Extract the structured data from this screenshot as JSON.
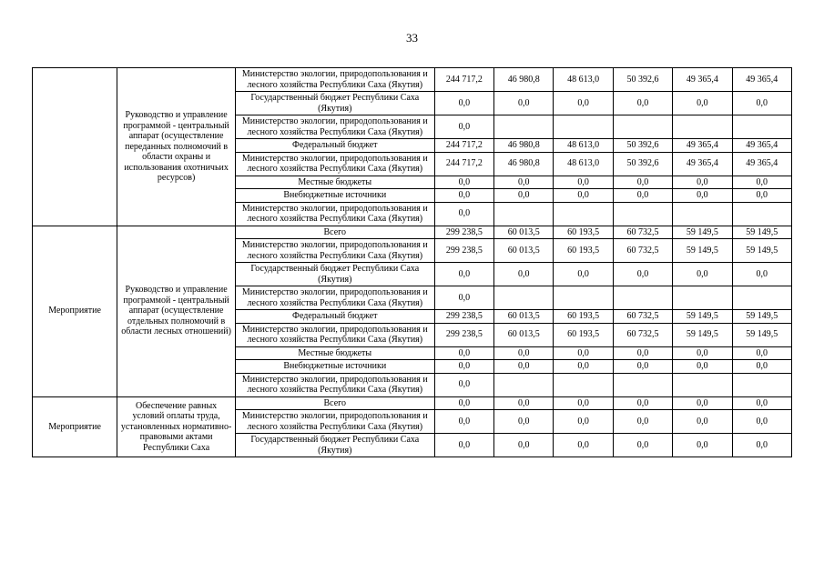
{
  "page_number": "33",
  "table": {
    "blocks": [
      {
        "category": "",
        "description": "Руководство и управление программой - центральный аппарат (осуществление переданных полномочий в области охраны и использования охотничьих ресурсов)",
        "rows": [
          {
            "source": "Министерство экологии, природопользования и лесного хозяйства Республики Саха (Якутия)",
            "values": [
              "244 717,2",
              "46 980,8",
              "48 613,0",
              "50 392,6",
              "49 365,4",
              "49 365,4"
            ]
          },
          {
            "source": "Государственный бюджет Республики Саха (Якутия)",
            "values": [
              "0,0",
              "0,0",
              "0,0",
              "0,0",
              "0,0",
              "0,0"
            ]
          },
          {
            "source": "Министерство экологии, природопользования и лесного хозяйства Республики Саха (Якутия)",
            "values": [
              "0,0",
              "",
              "",
              "",
              "",
              ""
            ]
          },
          {
            "source": "Федеральный бюджет",
            "values": [
              "244 717,2",
              "46 980,8",
              "48 613,0",
              "50 392,6",
              "49 365,4",
              "49 365,4"
            ]
          },
          {
            "source": "Министерство экологии, природопользования и лесного хозяйства Республики Саха (Якутия)",
            "values": [
              "244 717,2",
              "46 980,8",
              "48 613,0",
              "50 392,6",
              "49 365,4",
              "49 365,4"
            ]
          },
          {
            "source": "Местные бюджеты",
            "values": [
              "0,0",
              "0,0",
              "0,0",
              "0,0",
              "0,0",
              "0,0"
            ]
          },
          {
            "source": "Внебюджетные источники",
            "values": [
              "0,0",
              "0,0",
              "0,0",
              "0,0",
              "0,0",
              "0,0"
            ]
          },
          {
            "source": "Министерство экологии, природопользования и лесного хозяйства Республики Саха (Якутия)",
            "values": [
              "0,0",
              "",
              "",
              "",
              "",
              ""
            ]
          }
        ]
      },
      {
        "category": "Мероприятие",
        "description": "Руководство и управление программой - центральный аппарат (осуществление отдельных полномочий в области лесных отношений)",
        "rows": [
          {
            "source": "Всего",
            "values": [
              "299 238,5",
              "60 013,5",
              "60 193,5",
              "60 732,5",
              "59 149,5",
              "59 149,5"
            ]
          },
          {
            "source": "Министерство экологии, природопользования и лесного хозяйства Республики Саха (Якутия)",
            "values": [
              "299 238,5",
              "60 013,5",
              "60 193,5",
              "60 732,5",
              "59 149,5",
              "59 149,5"
            ]
          },
          {
            "source": "Государственный бюджет Республики Саха (Якутия)",
            "values": [
              "0,0",
              "0,0",
              "0,0",
              "0,0",
              "0,0",
              "0,0"
            ]
          },
          {
            "source": "Министерство экологии, природопользования и лесного хозяйства Республики Саха (Якутия)",
            "values": [
              "0,0",
              "",
              "",
              "",
              "",
              ""
            ]
          },
          {
            "source": "Федеральный бюджет",
            "values": [
              "299 238,5",
              "60 013,5",
              "60 193,5",
              "60 732,5",
              "59 149,5",
              "59 149,5"
            ]
          },
          {
            "source": "Министерство экологии, природопользования и лесного хозяйства Республики Саха (Якутия)",
            "values": [
              "299 238,5",
              "60 013,5",
              "60 193,5",
              "60 732,5",
              "59 149,5",
              "59 149,5"
            ]
          },
          {
            "source": "Местные бюджеты",
            "values": [
              "0,0",
              "0,0",
              "0,0",
              "0,0",
              "0,0",
              "0,0"
            ]
          },
          {
            "source": "Внебюджетные источники",
            "values": [
              "0,0",
              "0,0",
              "0,0",
              "0,0",
              "0,0",
              "0,0"
            ]
          },
          {
            "source": "Министерство экологии, природопользования и лесного хозяйства Республики Саха (Якутия)",
            "values": [
              "0,0",
              "",
              "",
              "",
              "",
              ""
            ]
          }
        ]
      },
      {
        "category": "Мероприятие",
        "description": "Обеспечение равных условий оплаты труда, установленных нормативно-правовыми актами Республики Саха",
        "rows": [
          {
            "source": "Всего",
            "values": [
              "0,0",
              "0,0",
              "0,0",
              "0,0",
              "0,0",
              "0,0"
            ]
          },
          {
            "source": "Министерство экологии, природопользования и лесного хозяйства Республики Саха (Якутия)",
            "values": [
              "0,0",
              "0,0",
              "0,0",
              "0,0",
              "0,0",
              "0,0"
            ]
          },
          {
            "source": "Государственный бюджет Республики Саха (Якутия)",
            "values": [
              "0,0",
              "0,0",
              "0,0",
              "0,0",
              "0,0",
              "0,0"
            ]
          }
        ]
      }
    ]
  }
}
